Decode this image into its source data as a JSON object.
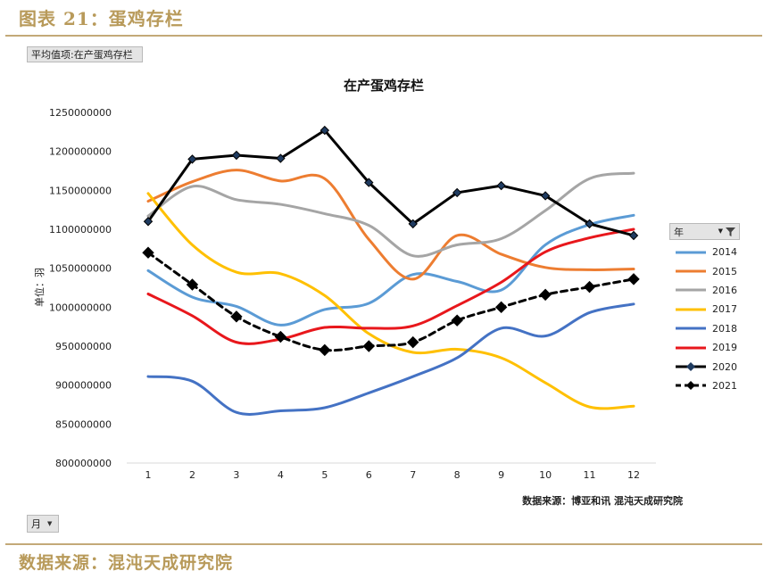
{
  "figure": {
    "title": "图表 21：蛋鸡存栏",
    "source": "数据来源：混沌天成研究院"
  },
  "pivot": {
    "value_field_label": "平均值项:在产蛋鸡存栏",
    "axis_field_label": "月",
    "legend_field_label": "年"
  },
  "chart_data": {
    "type": "line",
    "title": "在产蛋鸡存栏",
    "xlabel": "",
    "ylabel": "单位：羽",
    "source_note": "数据来源：博亚和讯 混沌天成研究院",
    "categories": [
      "1",
      "2",
      "3",
      "4",
      "5",
      "6",
      "7",
      "8",
      "9",
      "10",
      "11",
      "12"
    ],
    "ylim": [
      800000000,
      1250000000
    ],
    "yticks": [
      "800000000",
      "850000000",
      "900000000",
      "950000000",
      "1000000000",
      "1050000000",
      "1100000000",
      "1150000000",
      "1200000000",
      "1250000000"
    ],
    "legend_position": "right",
    "grid": false,
    "series": [
      {
        "name": "2014",
        "color": "#5b9bd5",
        "style": "solid",
        "smooth": true,
        "markers": false,
        "values": [
          1047000000,
          1013000000,
          1001000000,
          977000000,
          997000000,
          1005000000,
          1042000000,
          1033000000,
          1022000000,
          1080000000,
          1106000000,
          1118000000
        ]
      },
      {
        "name": "2015",
        "color": "#ed7d31",
        "style": "solid",
        "smooth": true,
        "markers": false,
        "values": [
          1136000000,
          1161000000,
          1176000000,
          1162000000,
          1165000000,
          1087000000,
          1036000000,
          1092000000,
          1068000000,
          1051000000,
          1048000000,
          1049000000
        ]
      },
      {
        "name": "2016",
        "color": "#a5a5a5",
        "style": "solid",
        "smooth": true,
        "markers": false,
        "values": [
          1117000000,
          1155000000,
          1138000000,
          1132000000,
          1120000000,
          1105000000,
          1066000000,
          1080000000,
          1088000000,
          1124000000,
          1165000000,
          1172000000
        ]
      },
      {
        "name": "2017",
        "color": "#ffc000",
        "style": "solid",
        "smooth": true,
        "markers": false,
        "values": [
          1146000000,
          1080000000,
          1045000000,
          1043000000,
          1015000000,
          966000000,
          942000000,
          946000000,
          935000000,
          903000000,
          872000000,
          873000000
        ]
      },
      {
        "name": "2018",
        "color": "#4472c4",
        "style": "solid",
        "smooth": true,
        "markers": false,
        "values": [
          911000000,
          905000000,
          865000000,
          867000000,
          871000000,
          890000000,
          911000000,
          935000000,
          973000000,
          963000000,
          993000000,
          1004000000
        ]
      },
      {
        "name": "2019",
        "color": "#e8171c",
        "style": "solid",
        "smooth": true,
        "markers": false,
        "values": [
          1017000000,
          989000000,
          955000000,
          959000000,
          974000000,
          973000000,
          976000000,
          1002000000,
          1032000000,
          1071000000,
          1089000000,
          1100000000
        ]
      },
      {
        "name": "2020",
        "color": "#000000",
        "style": "solid",
        "smooth": false,
        "markers": true,
        "values": [
          1110000000,
          1190000000,
          1195000000,
          1191000000,
          1227000000,
          1160000000,
          1107000000,
          1147000000,
          1156000000,
          1143000000,
          1107000000,
          1092000000
        ]
      },
      {
        "name": "2021",
        "color": "#000000",
        "style": "dashed",
        "smooth": true,
        "markers": true,
        "values": [
          1070000000,
          1029000000,
          988000000,
          962000000,
          945000000,
          950000000,
          955000000,
          983000000,
          1000000000,
          1016000000,
          1026000000,
          1036000000
        ]
      }
    ]
  }
}
